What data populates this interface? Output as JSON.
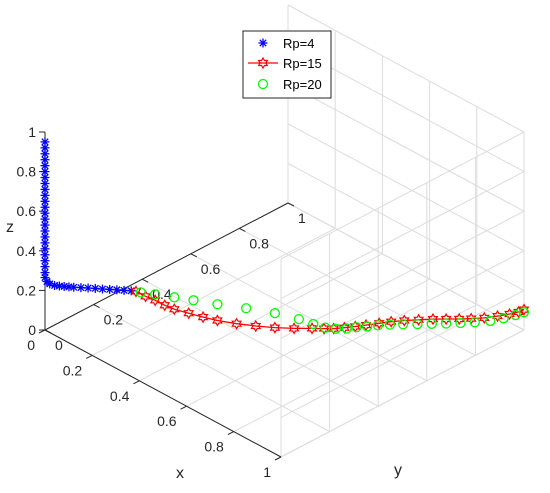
{
  "chart_data": {
    "type": "line3d",
    "title": "",
    "xlabel": "x",
    "ylabel": "y",
    "zlabel": "z",
    "xlim": [
      0,
      1
    ],
    "ylim": [
      0,
      1
    ],
    "zlim": [
      0,
      1
    ],
    "x_ticks": [
      "0",
      "0.2",
      "0.4",
      "0.6",
      "0.8",
      "1"
    ],
    "y_ticks": [
      "0",
      "0.2",
      "0.4",
      "0.6",
      "0.8",
      "1"
    ],
    "z_ticks": [
      "0",
      "0.2",
      "0.4",
      "0.6",
      "0.8",
      "1"
    ],
    "grid": true,
    "legend_position": "top",
    "colors": {
      "rp4": "#0000ff",
      "rp15": "#ff0000",
      "rp20": "#00ff00",
      "grid": "#dcdcdc",
      "axis": "#262626"
    },
    "series": [
      {
        "name": "Rp=4",
        "marker": "asterisk",
        "line": false,
        "points": [
          [
            0,
            0,
            0.95
          ],
          [
            0,
            0,
            0.92
          ],
          [
            0,
            0,
            0.89
          ],
          [
            0,
            0,
            0.86
          ],
          [
            0,
            0,
            0.83
          ],
          [
            0,
            0,
            0.8
          ],
          [
            0,
            0,
            0.77
          ],
          [
            0,
            0,
            0.74
          ],
          [
            0,
            0,
            0.71
          ],
          [
            0,
            0,
            0.68
          ],
          [
            0,
            0,
            0.65
          ],
          [
            0,
            0,
            0.62
          ],
          [
            0,
            0,
            0.59
          ],
          [
            0,
            0,
            0.56
          ],
          [
            0,
            0,
            0.53
          ],
          [
            0,
            0,
            0.5
          ],
          [
            0,
            0,
            0.47
          ],
          [
            0,
            0,
            0.44
          ],
          [
            0,
            0,
            0.41
          ],
          [
            0,
            0,
            0.38
          ],
          [
            0,
            0,
            0.35
          ],
          [
            0,
            0,
            0.32
          ],
          [
            0,
            0,
            0.29
          ],
          [
            0,
            0,
            0.265
          ],
          [
            0.004,
            0.004,
            0.245
          ],
          [
            0.01,
            0.01,
            0.233
          ],
          [
            0.02,
            0.02,
            0.225
          ],
          [
            0.03,
            0.03,
            0.222
          ],
          [
            0.04,
            0.04,
            0.22
          ],
          [
            0.05,
            0.05,
            0.218
          ],
          [
            0.06,
            0.06,
            0.216
          ],
          [
            0.075,
            0.075,
            0.214
          ],
          [
            0.09,
            0.09,
            0.212
          ],
          [
            0.105,
            0.105,
            0.21
          ],
          [
            0.12,
            0.12,
            0.207
          ],
          [
            0.135,
            0.135,
            0.205
          ],
          [
            0.15,
            0.15,
            0.203
          ],
          [
            0.165,
            0.165,
            0.2
          ],
          [
            0.18,
            0.18,
            0.198
          ]
        ]
      },
      {
        "name": "Rp=15",
        "marker": "hexagram",
        "line": true,
        "points": [
          [
            0.19,
            0.19,
            0.195
          ],
          [
            0.21,
            0.21,
            0.17
          ],
          [
            0.23,
            0.23,
            0.15
          ],
          [
            0.25,
            0.25,
            0.125
          ],
          [
            0.27,
            0.27,
            0.105
          ],
          [
            0.3,
            0.3,
            0.085
          ],
          [
            0.33,
            0.33,
            0.065
          ],
          [
            0.36,
            0.36,
            0.048
          ],
          [
            0.4,
            0.4,
            0.032
          ],
          [
            0.44,
            0.44,
            0.02
          ],
          [
            0.48,
            0.48,
            0.012
          ],
          [
            0.52,
            0.52,
            0.008
          ],
          [
            0.555,
            0.56,
            0.005
          ],
          [
            0.58,
            0.585,
            0.004
          ],
          [
            0.6,
            0.605,
            0.004
          ],
          [
            0.62,
            0.63,
            0.005
          ],
          [
            0.64,
            0.655,
            0.008
          ],
          [
            0.66,
            0.68,
            0.012
          ],
          [
            0.685,
            0.71,
            0.018
          ],
          [
            0.71,
            0.735,
            0.026
          ],
          [
            0.74,
            0.76,
            0.035
          ],
          [
            0.775,
            0.785,
            0.045
          ],
          [
            0.81,
            0.81,
            0.055
          ],
          [
            0.845,
            0.83,
            0.065
          ],
          [
            0.88,
            0.85,
            0.075
          ],
          [
            0.91,
            0.87,
            0.083
          ],
          [
            0.94,
            0.895,
            0.09
          ],
          [
            0.965,
            0.925,
            0.096
          ],
          [
            0.985,
            0.955,
            0.1
          ],
          [
            0.997,
            0.98,
            0.102
          ],
          [
            1,
            1,
            0.103
          ]
        ]
      },
      {
        "name": "Rp=20",
        "marker": "circle",
        "line": false,
        "points": [
          [
            0.2,
            0.2,
            0.19
          ],
          [
            0.23,
            0.23,
            0.18
          ],
          [
            0.27,
            0.27,
            0.165
          ],
          [
            0.31,
            0.31,
            0.15
          ],
          [
            0.36,
            0.36,
            0.13
          ],
          [
            0.42,
            0.42,
            0.11
          ],
          [
            0.48,
            0.48,
            0.085
          ],
          [
            0.53,
            0.53,
            0.055
          ],
          [
            0.56,
            0.56,
            0.03
          ],
          [
            0.585,
            0.585,
            0.012
          ],
          [
            0.605,
            0.61,
            0.003
          ],
          [
            0.625,
            0.635,
            0.001
          ],
          [
            0.64,
            0.66,
            0.001
          ],
          [
            0.66,
            0.685,
            0.002
          ],
          [
            0.68,
            0.71,
            0.004
          ],
          [
            0.705,
            0.735,
            0.008
          ],
          [
            0.735,
            0.76,
            0.013
          ],
          [
            0.77,
            0.785,
            0.02
          ],
          [
            0.805,
            0.81,
            0.028
          ],
          [
            0.84,
            0.835,
            0.036
          ],
          [
            0.875,
            0.86,
            0.045
          ],
          [
            0.91,
            0.885,
            0.055
          ],
          [
            0.945,
            0.915,
            0.065
          ],
          [
            0.97,
            0.945,
            0.075
          ],
          [
            0.99,
            0.975,
            0.085
          ],
          [
            1,
            1,
            0.09
          ]
        ]
      }
    ]
  }
}
